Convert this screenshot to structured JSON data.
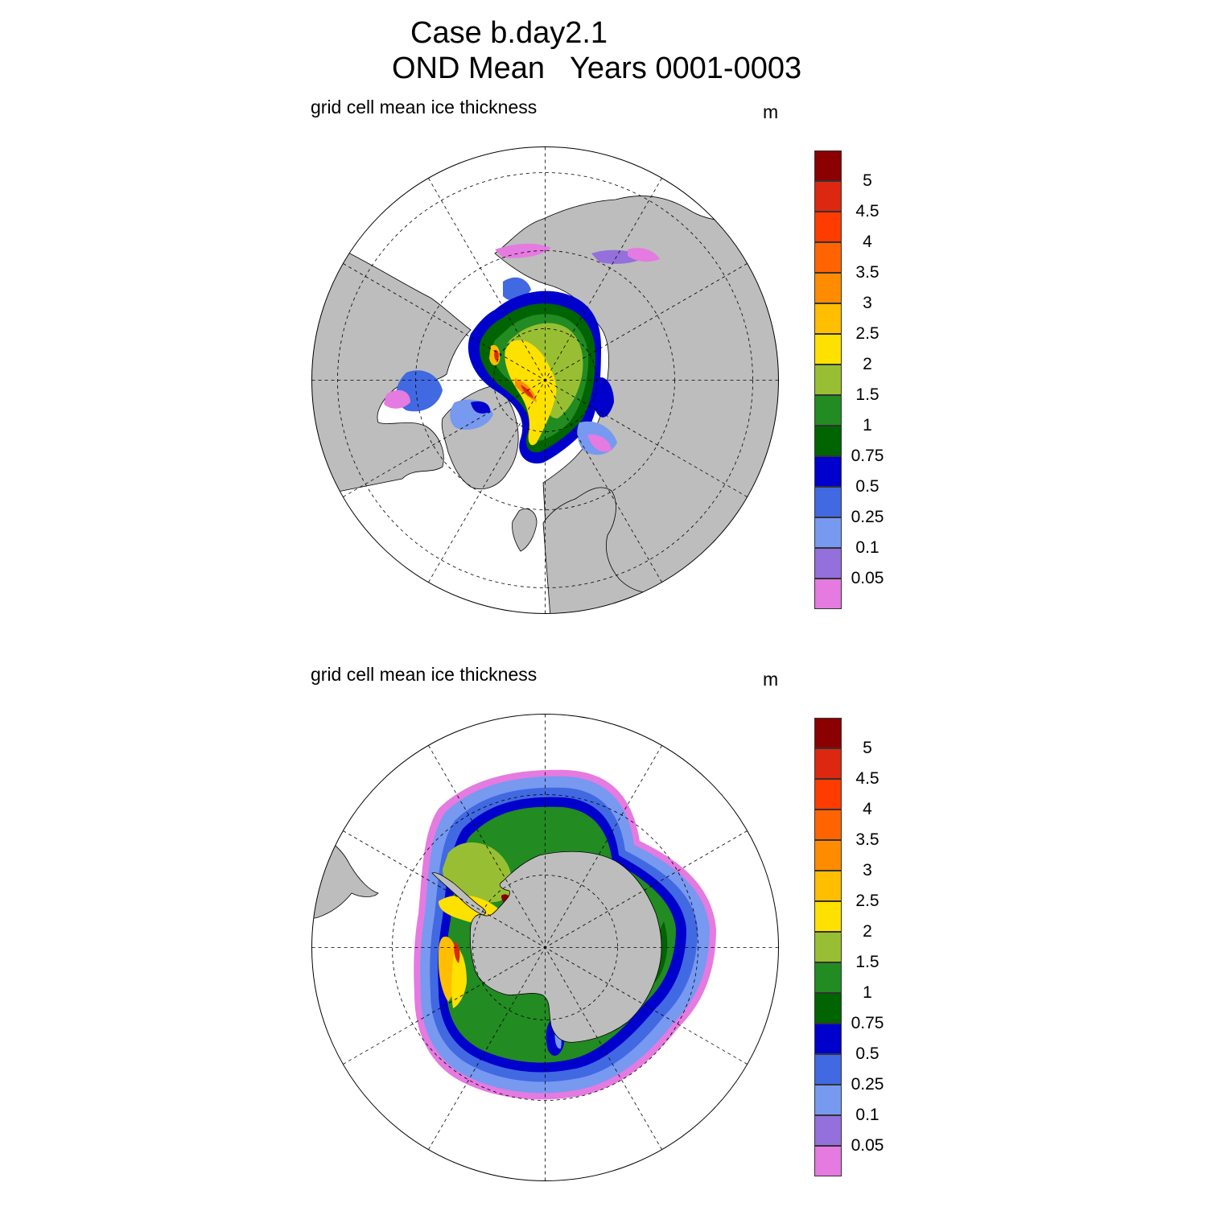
{
  "figure": {
    "title_line1": "Case b.day2.1",
    "title_line2": "OND Mean   Years 0001-0003"
  },
  "panels": [
    {
      "id": "north",
      "hemisphere": "Arctic",
      "label": "grid cell mean ice thickness",
      "units": "m"
    },
    {
      "id": "south",
      "hemisphere": "Antarctic",
      "label": "grid cell mean ice thickness",
      "units": "m"
    }
  ],
  "colorbar": {
    "labels": [
      "5",
      "4.5",
      "4",
      "3.5",
      "3",
      "2.5",
      "2",
      "1.5",
      "1",
      "0.75",
      "0.5",
      "0.25",
      "0.1",
      "0.05"
    ],
    "colors_top_to_bottom": [
      "#8b0000",
      "#dc2810",
      "#ff3c00",
      "#ff6400",
      "#ff8c00",
      "#ffbe00",
      "#ffe100",
      "#98bf33",
      "#228b22",
      "#006400",
      "#0000cd",
      "#4169e1",
      "#7799f0",
      "#9370db",
      "#e57ae0"
    ]
  },
  "map_colors": {
    "land": "#bdbdbd",
    "ocean": "#ffffff",
    "coast": "#000000",
    "grid": "#000000"
  }
}
